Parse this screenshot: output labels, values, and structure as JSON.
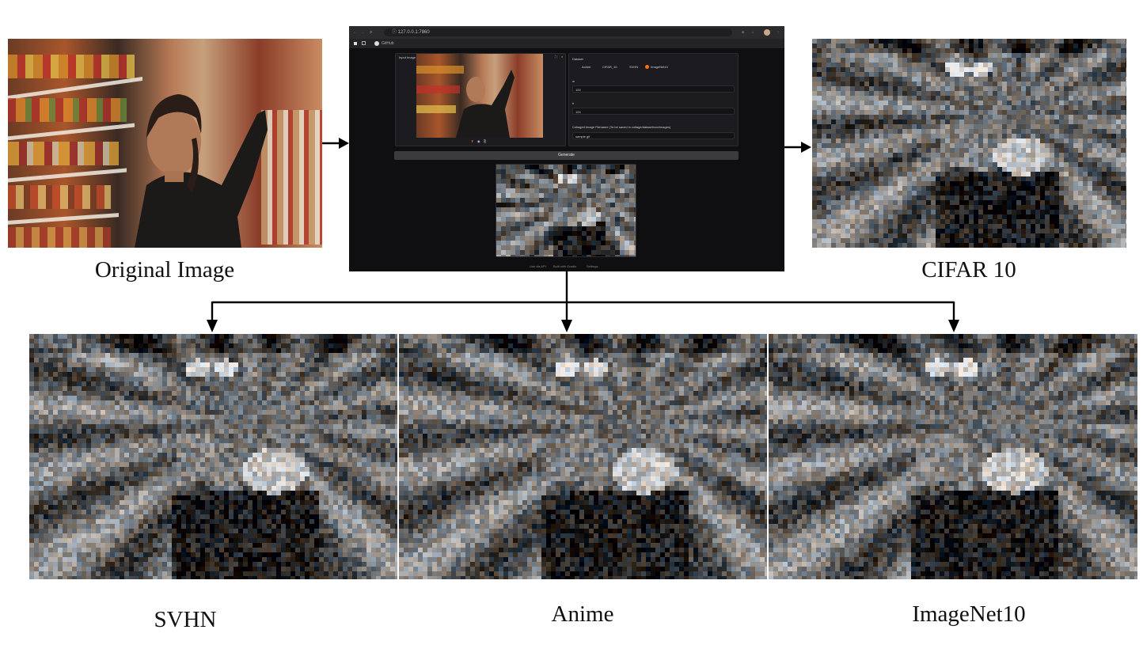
{
  "captions": {
    "original": "Original Image",
    "cifar": "CIFAR 10",
    "svhn": "SVHN",
    "anime": "Anime",
    "imagenet": "ImageNet10"
  },
  "browser": {
    "url": "127.0.0.1:7860",
    "bookmark": "GitHub",
    "input_image_label": "Input Image",
    "dataset_label": "Dataset",
    "dataset_options": [
      "Anime",
      "CIFAR_10",
      "SVHN",
      "ImageNet10"
    ],
    "dataset_selected": "ImageNet10",
    "w_label": "w",
    "w_value": "100",
    "h_label": "h",
    "h_value": "100",
    "filename_label": "Collaged Image Filename (To be saved in collage/dataset/xxx/images)",
    "filename_value": "sample.gif",
    "generate_label": "Generate",
    "output_label": "Collaged Image",
    "footer_api": "Use via API",
    "footer_built": "Built with Gradio",
    "footer_settings": "Settings"
  },
  "colors": {
    "browser_bg": "#0f0f11",
    "chrome": "#2b2b2e",
    "arrow": "#000000",
    "accent_radio": "#f97316"
  },
  "icons": [
    "back-icon",
    "forward-icon",
    "reload-icon",
    "info-icon",
    "zoom-icon",
    "star-icon",
    "profile-icon",
    "menu-icon",
    "github-icon",
    "upload-icon",
    "webcam-icon",
    "clipboard-icon",
    "fullscreen-icon",
    "close-icon"
  ]
}
